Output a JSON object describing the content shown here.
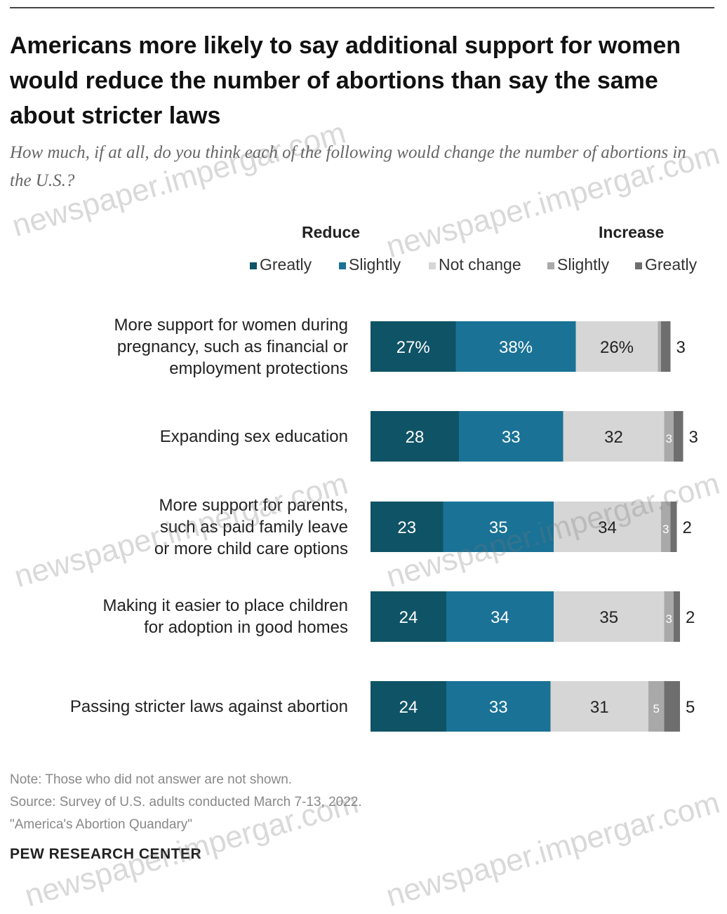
{
  "title": "Americans more likely to say additional support for women would reduce the number of abortions than say the same about stricter laws",
  "subtitle": "How much, if at all, do you think each of the following would change the number of abortions in the U.S.?",
  "group_labels": {
    "reduce": "Reduce",
    "increase": "Increase"
  },
  "legend": [
    {
      "label": "Greatly",
      "color": "#0f5366"
    },
    {
      "label": "Slightly",
      "color": "#1a7296"
    },
    {
      "label": "Not change",
      "color": "#d6d6d6"
    },
    {
      "label": "Slightly",
      "color": "#a9a9a9"
    },
    {
      "label": "Greatly",
      "color": "#6e6e6e"
    }
  ],
  "chart_data": {
    "type": "bar",
    "orientation": "horizontal",
    "stacked": true,
    "categories": [
      "More support for women during pregnancy, such as financial or employment protections",
      "Expanding sex education",
      "More support for parents, such as paid family leave or more child care options",
      "Making it easier to place children for adoption in good homes",
      "Passing stricter laws against abortion"
    ],
    "category_lines": [
      [
        "More support for women during",
        "pregnancy, such as financial or",
        "employment protections"
      ],
      [
        "Expanding sex education"
      ],
      [
        "More support for parents,",
        "such as paid family leave",
        "or more child care options"
      ],
      [
        "Making it easier to place children",
        "for adoption in good homes"
      ],
      [
        "Passing stricter laws against abortion"
      ]
    ],
    "series": [
      {
        "name": "Reduce Greatly",
        "color": "#0f5366",
        "values": [
          27,
          28,
          23,
          24,
          24
        ],
        "labels": [
          "27%",
          "28",
          "23",
          "24",
          "24"
        ]
      },
      {
        "name": "Reduce Slightly",
        "color": "#1a7296",
        "values": [
          38,
          33,
          35,
          34,
          33
        ],
        "labels": [
          "38%",
          "33",
          "35",
          "34",
          "33"
        ]
      },
      {
        "name": "Not change",
        "color": "#d6d6d6",
        "values": [
          26,
          32,
          34,
          35,
          31
        ],
        "labels": [
          "26%",
          "32",
          "34",
          "35",
          "31"
        ]
      },
      {
        "name": "Increase Slightly",
        "color": "#a9a9a9",
        "values": [
          1,
          3,
          3,
          3,
          5
        ],
        "labels": [
          "",
          "3",
          "3",
          "3",
          "5"
        ]
      },
      {
        "name": "Increase Greatly",
        "color": "#6e6e6e",
        "values": [
          3,
          3,
          2,
          2,
          5
        ],
        "labels": [
          "3",
          "3",
          "2",
          "2",
          "5"
        ]
      }
    ],
    "xlim": [
      0,
      100
    ]
  },
  "notes": [
    "Note: Those who did not answer are not shown.",
    "Source: Survey of U.S. adults conducted March 7-13, 2022.",
    "\"America's Abortion Quandary\""
  ],
  "source_org": "PEW RESEARCH CENTER",
  "watermark_text": "newspaper.impergar.com"
}
